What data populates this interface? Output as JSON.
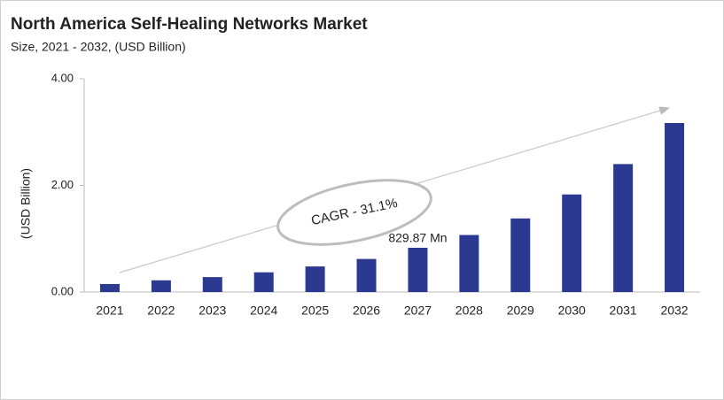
{
  "chart_data": {
    "type": "bar",
    "title": "North America Self-Healing Networks Market",
    "subtitle": "Size, 2021 - 2032, (USD Billion)",
    "y_axis_label": "(USD Billion)",
    "annotation": "CAGR - 31.1%",
    "categories": [
      "2021",
      "2022",
      "2023",
      "2024",
      "2025",
      "2026",
      "2027",
      "2028",
      "2029",
      "2030",
      "2031",
      "2032"
    ],
    "values": [
      0.15,
      0.22,
      0.28,
      0.37,
      0.48,
      0.62,
      0.82987,
      1.07,
      1.38,
      1.83,
      2.4,
      3.17
    ],
    "value_labels": [
      null,
      null,
      null,
      null,
      null,
      null,
      "829.87 Mn",
      null,
      null,
      null,
      null,
      null
    ],
    "color": "#2b3990",
    "ylim": [
      0,
      4
    ],
    "yticks": [
      {
        "value": 0,
        "label": "0.00"
      },
      {
        "value": 2,
        "label": "2.00"
      },
      {
        "value": 4,
        "label": "4.00"
      }
    ],
    "grid": false
  }
}
